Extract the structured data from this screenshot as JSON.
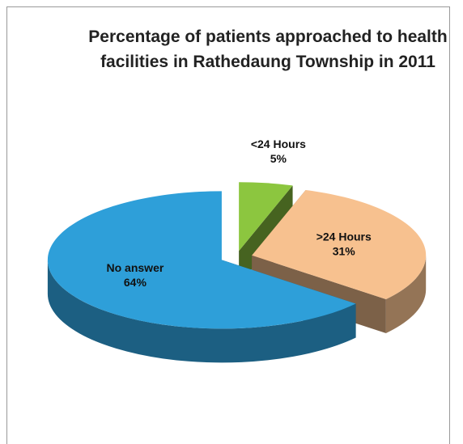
{
  "chart_data": {
    "type": "pie3d",
    "title": "Percentage of patients approached to health facilities in Rathedaung Township in 2011",
    "categories": [
      "<24 Hours",
      ">24 Hours",
      "No answer"
    ],
    "values": [
      5,
      31,
      64
    ],
    "value_labels": [
      "5%",
      "31%",
      "64%"
    ],
    "colors": [
      "#8cc63f",
      "#f7c18f",
      "#2e9fd9"
    ]
  }
}
